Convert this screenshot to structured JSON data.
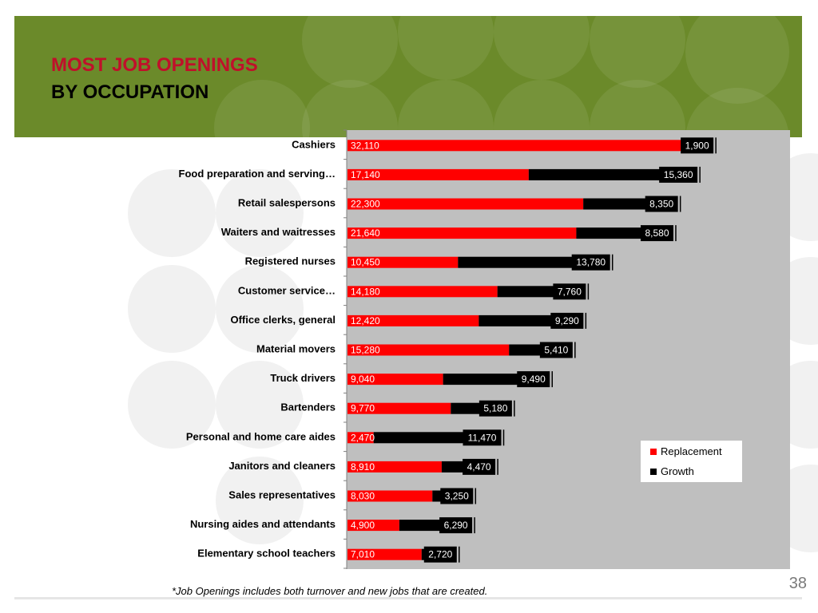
{
  "slide": {
    "title_line1": "MOST JOB OPENINGS",
    "title_line2": "BY OCCUPATION",
    "footnote": "*Job Openings includes both turnover and new jobs that are created.",
    "page_number": "38"
  },
  "colors": {
    "replacement": "#ff0000",
    "growth": "#000000",
    "plot_bg": "#bfbfbf",
    "title_accent": "#c0102a",
    "banner": "#6b8a2a"
  },
  "chart_data": {
    "type": "bar",
    "orientation": "horizontal",
    "stacked": true,
    "categories": [
      "Cashiers",
      "Food preparation and serving…",
      "Retail salespersons",
      "Waiters and waitresses",
      "Registered nurses",
      "Customer service…",
      "Office clerks, general",
      "Material movers",
      "Truck drivers",
      "Bartenders",
      "Personal and home care aides",
      "Janitors and cleaners",
      "Sales representatives",
      "Nursing aides and attendants",
      "Elementary school teachers"
    ],
    "series": [
      {
        "name": "Replacement",
        "labels": [
          "32,110",
          "17,140",
          "22,300",
          "21,640",
          "10,450",
          "14,180",
          "12,420",
          "15,280",
          "9,040",
          "9,770",
          "2,470",
          "8,910",
          "8,030",
          "4,900",
          "7,010"
        ],
        "values": [
          32110,
          17140,
          22300,
          21640,
          10450,
          14180,
          12420,
          15280,
          9040,
          9770,
          2470,
          8910,
          8030,
          4900,
          7010
        ]
      },
      {
        "name": "Growth",
        "labels": [
          "1,900",
          "15,360",
          "8,350",
          "8,580",
          "13,780",
          "7,760",
          "9,290",
          "5,410",
          "9,490",
          "5,180",
          "11,470",
          "4,470",
          "3,250",
          "6,290",
          "2,720"
        ],
        "values": [
          1900,
          15360,
          8350,
          8580,
          13780,
          7760,
          9290,
          5410,
          9490,
          5180,
          11470,
          4470,
          3250,
          6290,
          2720
        ]
      }
    ],
    "xlim": [
      0,
      36000
    ],
    "grid": false,
    "legend_position": "bottom-right"
  }
}
